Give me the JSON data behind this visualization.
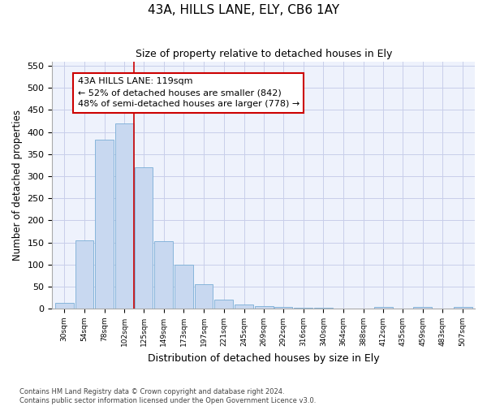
{
  "title": "43A, HILLS LANE, ELY, CB6 1AY",
  "subtitle": "Size of property relative to detached houses in Ely",
  "xlabel": "Distribution of detached houses by size in Ely",
  "ylabel": "Number of detached properties",
  "footnote": "Contains HM Land Registry data © Crown copyright and database right 2024.\nContains public sector information licensed under the Open Government Licence v3.0.",
  "bar_color": "#c8d8f0",
  "bar_edgecolor": "#7aaed6",
  "background_color": "#eef2fc",
  "grid_color": "#c8ceea",
  "property_line_x": 125,
  "property_line_color": "#cc0000",
  "annotation_text": "43A HILLS LANE: 119sqm\n← 52% of detached houses are smaller (842)\n48% of semi-detached houses are larger (778) →",
  "annotation_box_color": "#cc0000",
  "bins": [
    30,
    54,
    78,
    102,
    125,
    149,
    173,
    197,
    221,
    245,
    269,
    292,
    316,
    340,
    364,
    388,
    412,
    435,
    459,
    483,
    507
  ],
  "bar_heights": [
    13,
    155,
    382,
    420,
    320,
    153,
    100,
    55,
    20,
    10,
    5,
    3,
    2,
    2,
    1,
    1,
    3,
    1,
    3,
    1,
    3
  ],
  "ylim": [
    0,
    560
  ],
  "yticks": [
    0,
    50,
    100,
    150,
    200,
    250,
    300,
    350,
    400,
    450,
    500,
    550
  ]
}
